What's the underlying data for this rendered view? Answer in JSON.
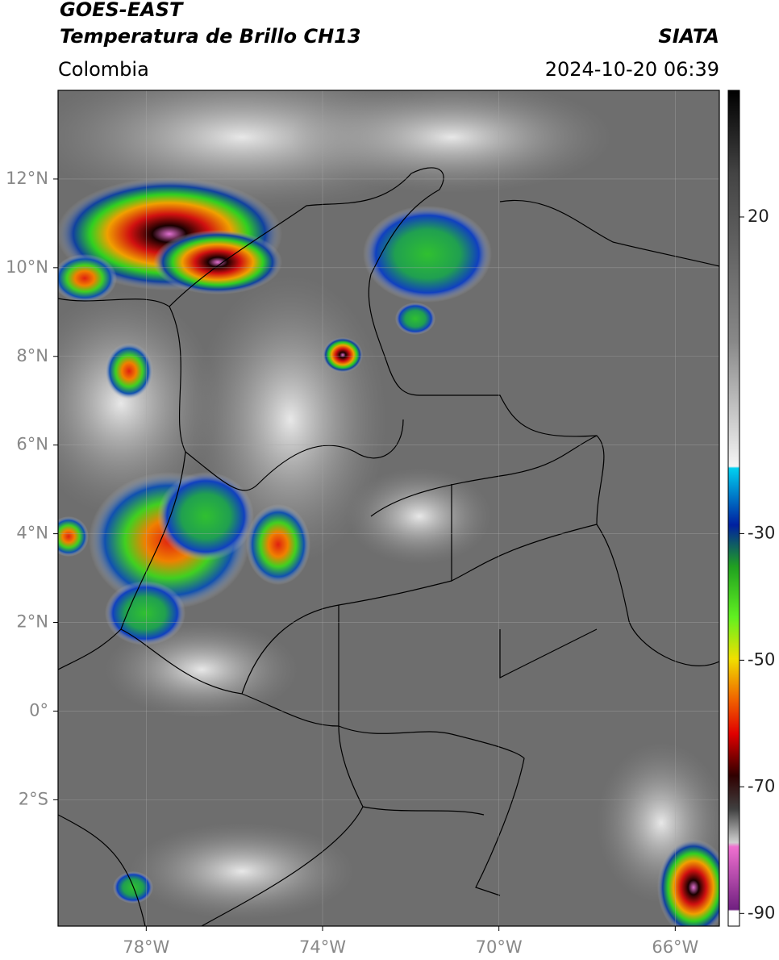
{
  "chart_data": {
    "type": "map",
    "title": "GOES-EAST",
    "subtitle": "Temperatura de Brillo CH13",
    "source": "SIATA",
    "region": "Colombia",
    "timestamp": "2024-10-20 06:39",
    "xlim": [
      -80,
      -65
    ],
    "ylim": [
      -4.85,
      14
    ],
    "xticks": [
      {
        "value": -78,
        "label": "78°W"
      },
      {
        "value": -74,
        "label": "74°W"
      },
      {
        "value": -70,
        "label": "70°W"
      },
      {
        "value": -66,
        "label": "66°W"
      }
    ],
    "yticks": [
      {
        "value": 12,
        "label": "12°N"
      },
      {
        "value": 10,
        "label": "10°N"
      },
      {
        "value": 8,
        "label": "8°N"
      },
      {
        "value": 6,
        "label": "6°N"
      },
      {
        "value": 4,
        "label": "4°N"
      },
      {
        "value": 2,
        "label": "2°N"
      },
      {
        "value": 0,
        "label": "0°"
      },
      {
        "value": -2,
        "label": "2°S"
      }
    ],
    "grid": true,
    "colorbar": {
      "lim": [
        -92,
        40
      ],
      "ticks": [
        20,
        -30,
        -50,
        -70,
        -90
      ]
    }
  }
}
